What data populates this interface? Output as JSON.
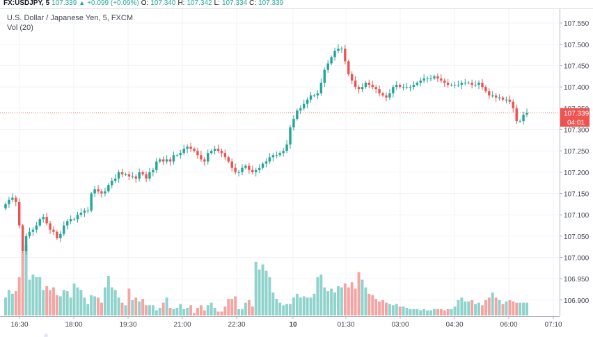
{
  "header": {
    "symbol": "FX:USDJPY, 5",
    "last": "107.339",
    "arrow": "▲",
    "change": "+0.099 (+0.09%)",
    "o_label": "O:",
    "o_value": "107.340",
    "h_label": "H:",
    "h_value": "107.342",
    "l_label": "L:",
    "l_value": "107.334",
    "c_label": "C:",
    "c_value": "107.339",
    "description": "U.S. Dollar / Japanese Yen, 5, FXCM",
    "volume_label": "Vol (20)"
  },
  "colors": {
    "up": "#26a69a",
    "down": "#ef5350",
    "vol_up": "#8fd3cc",
    "vol_down": "#f3a5a3",
    "grid": "#f0f3fa",
    "price_line": "#ef5350"
  },
  "chart_data": {
    "type": "candlestick",
    "x_ticks": [
      "16:30",
      "18:00",
      "19:30",
      "21:00",
      "22:30",
      "10",
      "01:30",
      "03:00",
      "04:30",
      "06:00",
      "07:10"
    ],
    "y_ticks": [
      "107.550",
      "107.500",
      "107.450",
      "107.400",
      "107.350",
      "107.300",
      "107.250",
      "107.200",
      "107.150",
      "107.100",
      "107.050",
      "107.000",
      "106.950",
      "106.900"
    ],
    "ylim": [
      106.885,
      107.56
    ],
    "current_price": "107.339",
    "countdown": "04:01",
    "grid": true,
    "series": [
      {
        "name": "Price",
        "values": [
          107.125,
          107.135,
          107.14,
          107.13,
          107.075,
          107.015,
          107.05,
          107.06,
          107.065,
          107.075,
          107.09,
          107.095,
          107.08,
          107.065,
          107.06,
          107.045,
          107.055,
          107.075,
          107.085,
          107.09,
          107.09,
          107.1,
          107.105,
          107.11,
          107.11,
          107.15,
          107.16,
          107.155,
          107.15,
          107.155,
          107.17,
          107.18,
          107.185,
          107.2,
          107.195,
          107.195,
          107.19,
          107.19,
          107.185,
          107.2,
          107.195,
          107.185,
          107.2,
          107.205,
          107.225,
          107.23,
          107.225,
          107.23,
          107.225,
          107.24,
          107.24,
          107.245,
          107.255,
          107.26,
          107.255,
          107.25,
          107.24,
          107.23,
          107.225,
          107.245,
          107.25,
          107.255,
          107.25,
          107.245,
          107.235,
          107.225,
          107.21,
          107.2,
          107.2,
          107.21,
          107.215,
          107.205,
          107.2,
          107.205,
          107.21,
          107.22,
          107.225,
          107.235,
          107.24,
          107.24,
          107.245,
          107.25,
          107.265,
          107.305,
          107.325,
          107.345,
          107.35,
          107.36,
          107.37,
          107.38,
          107.38,
          107.385,
          107.41,
          107.44,
          107.455,
          107.47,
          107.485,
          107.49,
          107.49,
          107.46,
          107.43,
          107.415,
          107.4,
          107.395,
          107.4,
          107.41,
          107.405,
          107.4,
          107.395,
          107.385,
          107.38,
          107.375,
          107.385,
          107.4,
          107.405,
          107.4,
          107.4,
          107.4,
          107.4,
          107.405,
          107.41,
          107.415,
          107.42,
          107.42,
          107.42,
          107.425,
          107.42,
          107.415,
          107.41,
          107.405,
          107.405,
          107.405,
          107.405,
          107.41,
          107.41,
          107.41,
          107.405,
          107.405,
          107.41,
          107.4,
          107.39,
          107.38,
          107.38,
          107.375,
          107.375,
          107.37,
          107.37,
          107.365,
          107.35,
          107.32,
          107.32,
          107.335,
          107.339
        ]
      },
      {
        "name": "Vol (20)",
        "values": [
          0.14,
          0.2,
          0.17,
          0.19,
          0.3,
          0.5,
          0.55,
          0.28,
          0.32,
          0.3,
          0.3,
          0.2,
          0.23,
          0.2,
          0.22,
          0.16,
          0.15,
          0.2,
          0.19,
          0.14,
          0.25,
          0.22,
          0.2,
          0.14,
          0.09,
          0.16,
          0.15,
          0.14,
          0.1,
          0.22,
          0.31,
          0.22,
          0.2,
          0.14,
          0.1,
          0.08,
          0.21,
          0.12,
          0.14,
          0.11,
          0.13,
          0.08,
          0.08,
          0.08,
          0.04,
          0.06,
          0.1,
          0.14,
          0.06,
          0.05,
          0.06,
          0.09,
          0.05,
          0.06,
          0.08,
          0.02,
          0.06,
          0.08,
          0.04,
          0.08,
          0.1,
          0.06,
          0.03,
          0.03,
          0.07,
          0.13,
          0.13,
          0.15,
          0.05,
          0.05,
          0.1,
          0.12,
          0.07,
          0.42,
          0.36,
          0.4,
          0.35,
          0.3,
          0.18,
          0.13,
          0.1,
          0.08,
          0.09,
          0.09,
          0.14,
          0.17,
          0.14,
          0.15,
          0.14,
          0.14,
          0.17,
          0.3,
          0.32,
          0.22,
          0.19,
          0.21,
          0.18,
          0.23,
          0.22,
          0.25,
          0.22,
          0.26,
          0.21,
          0.34,
          0.28,
          0.22,
          0.17,
          0.16,
          0.13,
          0.11,
          0.12,
          0.1,
          0.09,
          0.08,
          0.09,
          0.07,
          0.07,
          0.06,
          0.05,
          0.05,
          0.05,
          0.04,
          0.05,
          0.04,
          0.04,
          0.05,
          0.05,
          0.05,
          0.04,
          0.05,
          0.05,
          0.07,
          0.12,
          0.14,
          0.11,
          0.11,
          0.12,
          0.09,
          0.1,
          0.08,
          0.12,
          0.14,
          0.18,
          0.14,
          0.12,
          0.09,
          0.11,
          0.12,
          0.11,
          0.1,
          0.1,
          0.1,
          0.1
        ]
      }
    ]
  }
}
